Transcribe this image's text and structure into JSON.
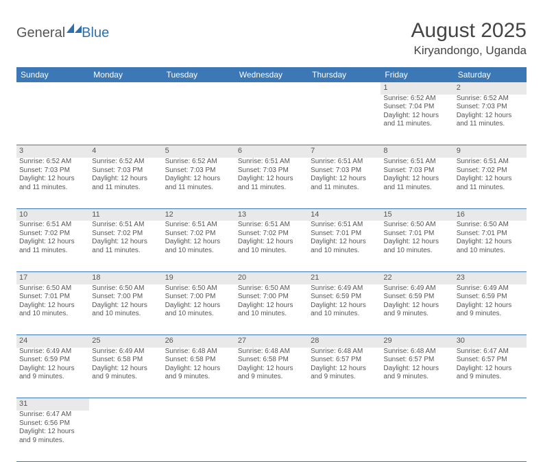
{
  "logo": {
    "general": "General",
    "blue": "Blue"
  },
  "title": "August 2025",
  "location": "Kiryandongo, Uganda",
  "colors": {
    "header_bg": "#3b78b5",
    "header_text": "#ffffff",
    "daynum_bg": "#e9e9e9",
    "border": "#3b78b5",
    "body_text": "#555555",
    "title_text": "#444444"
  },
  "table": {
    "columns": [
      "Sunday",
      "Monday",
      "Tuesday",
      "Wednesday",
      "Thursday",
      "Friday",
      "Saturday"
    ],
    "weeks": [
      {
        "nums": [
          "",
          "",
          "",
          "",
          "",
          "1",
          "2"
        ],
        "cells": [
          "",
          "",
          "",
          "",
          "",
          "Sunrise: 6:52 AM\nSunset: 7:04 PM\nDaylight: 12 hours and 11 minutes.",
          "Sunrise: 6:52 AM\nSunset: 7:03 PM\nDaylight: 12 hours and 11 minutes."
        ]
      },
      {
        "nums": [
          "3",
          "4",
          "5",
          "6",
          "7",
          "8",
          "9"
        ],
        "cells": [
          "Sunrise: 6:52 AM\nSunset: 7:03 PM\nDaylight: 12 hours and 11 minutes.",
          "Sunrise: 6:52 AM\nSunset: 7:03 PM\nDaylight: 12 hours and 11 minutes.",
          "Sunrise: 6:52 AM\nSunset: 7:03 PM\nDaylight: 12 hours and 11 minutes.",
          "Sunrise: 6:51 AM\nSunset: 7:03 PM\nDaylight: 12 hours and 11 minutes.",
          "Sunrise: 6:51 AM\nSunset: 7:03 PM\nDaylight: 12 hours and 11 minutes.",
          "Sunrise: 6:51 AM\nSunset: 7:03 PM\nDaylight: 12 hours and 11 minutes.",
          "Sunrise: 6:51 AM\nSunset: 7:02 PM\nDaylight: 12 hours and 11 minutes."
        ]
      },
      {
        "nums": [
          "10",
          "11",
          "12",
          "13",
          "14",
          "15",
          "16"
        ],
        "cells": [
          "Sunrise: 6:51 AM\nSunset: 7:02 PM\nDaylight: 12 hours and 11 minutes.",
          "Sunrise: 6:51 AM\nSunset: 7:02 PM\nDaylight: 12 hours and 11 minutes.",
          "Sunrise: 6:51 AM\nSunset: 7:02 PM\nDaylight: 12 hours and 10 minutes.",
          "Sunrise: 6:51 AM\nSunset: 7:02 PM\nDaylight: 12 hours and 10 minutes.",
          "Sunrise: 6:51 AM\nSunset: 7:01 PM\nDaylight: 12 hours and 10 minutes.",
          "Sunrise: 6:50 AM\nSunset: 7:01 PM\nDaylight: 12 hours and 10 minutes.",
          "Sunrise: 6:50 AM\nSunset: 7:01 PM\nDaylight: 12 hours and 10 minutes."
        ]
      },
      {
        "nums": [
          "17",
          "18",
          "19",
          "20",
          "21",
          "22",
          "23"
        ],
        "cells": [
          "Sunrise: 6:50 AM\nSunset: 7:01 PM\nDaylight: 12 hours and 10 minutes.",
          "Sunrise: 6:50 AM\nSunset: 7:00 PM\nDaylight: 12 hours and 10 minutes.",
          "Sunrise: 6:50 AM\nSunset: 7:00 PM\nDaylight: 12 hours and 10 minutes.",
          "Sunrise: 6:50 AM\nSunset: 7:00 PM\nDaylight: 12 hours and 10 minutes.",
          "Sunrise: 6:49 AM\nSunset: 6:59 PM\nDaylight: 12 hours and 10 minutes.",
          "Sunrise: 6:49 AM\nSunset: 6:59 PM\nDaylight: 12 hours and 9 minutes.",
          "Sunrise: 6:49 AM\nSunset: 6:59 PM\nDaylight: 12 hours and 9 minutes."
        ]
      },
      {
        "nums": [
          "24",
          "25",
          "26",
          "27",
          "28",
          "29",
          "30"
        ],
        "cells": [
          "Sunrise: 6:49 AM\nSunset: 6:59 PM\nDaylight: 12 hours and 9 minutes.",
          "Sunrise: 6:49 AM\nSunset: 6:58 PM\nDaylight: 12 hours and 9 minutes.",
          "Sunrise: 6:48 AM\nSunset: 6:58 PM\nDaylight: 12 hours and 9 minutes.",
          "Sunrise: 6:48 AM\nSunset: 6:58 PM\nDaylight: 12 hours and 9 minutes.",
          "Sunrise: 6:48 AM\nSunset: 6:57 PM\nDaylight: 12 hours and 9 minutes.",
          "Sunrise: 6:48 AM\nSunset: 6:57 PM\nDaylight: 12 hours and 9 minutes.",
          "Sunrise: 6:47 AM\nSunset: 6:57 PM\nDaylight: 12 hours and 9 minutes."
        ]
      },
      {
        "nums": [
          "31",
          "",
          "",
          "",
          "",
          "",
          ""
        ],
        "cells": [
          "Sunrise: 6:47 AM\nSunset: 6:56 PM\nDaylight: 12 hours and 9 minutes.",
          "",
          "",
          "",
          "",
          "",
          ""
        ]
      }
    ]
  }
}
